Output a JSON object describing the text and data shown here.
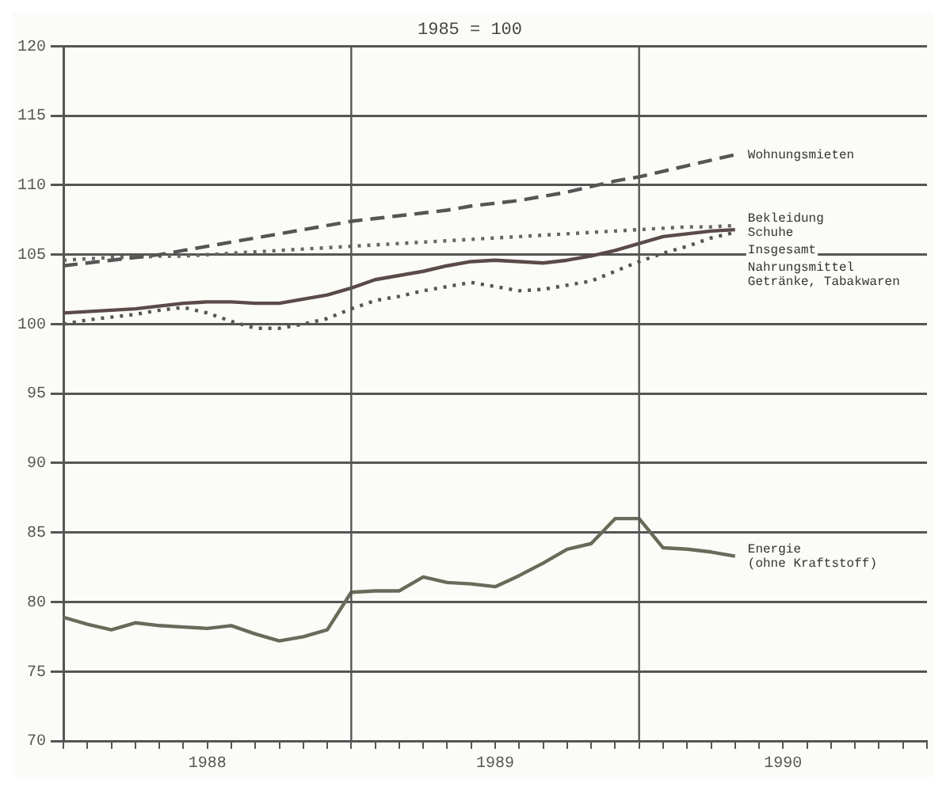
{
  "chart_data": {
    "type": "line",
    "title": "1985 = 100",
    "x": [
      "1988-01",
      "1988-02",
      "1988-03",
      "1988-04",
      "1988-05",
      "1988-06",
      "1988-07",
      "1988-08",
      "1988-09",
      "1988-10",
      "1988-11",
      "1988-12",
      "1989-01",
      "1989-02",
      "1989-03",
      "1989-04",
      "1989-05",
      "1989-06",
      "1989-07",
      "1989-08",
      "1989-09",
      "1989-10",
      "1989-11",
      "1989-12",
      "1990-01",
      "1990-02",
      "1990-03",
      "1990-04",
      "1990-05"
    ],
    "series": [
      {
        "name": "Wohnungsmieten",
        "color": "#555555",
        "line_style": "dashed",
        "values": [
          104.2,
          104.4,
          104.6,
          104.8,
          105.0,
          105.3,
          105.6,
          105.9,
          106.2,
          106.5,
          106.8,
          107.1,
          107.4,
          107.6,
          107.8,
          108.0,
          108.2,
          108.5,
          108.7,
          108.9,
          109.2,
          109.5,
          109.9,
          110.3,
          110.6,
          111.0,
          111.4,
          111.8,
          112.2
        ]
      },
      {
        "name": "Bekleidung Schuhe",
        "color": "#666666",
        "line_style": "dotted",
        "values": [
          104.6,
          104.7,
          104.8,
          104.8,
          104.9,
          104.9,
          105.0,
          105.1,
          105.2,
          105.3,
          105.4,
          105.5,
          105.6,
          105.7,
          105.8,
          105.9,
          106.0,
          106.1,
          106.2,
          106.3,
          106.4,
          106.5,
          106.6,
          106.7,
          106.8,
          106.9,
          107.0,
          107.0,
          107.1
        ]
      },
      {
        "name": "Insgesamt",
        "color": "#5a4a48",
        "line_style": "solid",
        "values": [
          100.8,
          100.9,
          101.0,
          101.1,
          101.3,
          101.5,
          101.6,
          101.6,
          101.5,
          101.5,
          101.8,
          102.1,
          102.6,
          103.2,
          103.5,
          103.8,
          104.2,
          104.5,
          104.6,
          104.5,
          104.4,
          104.6,
          104.9,
          105.3,
          105.8,
          106.3,
          106.5,
          106.7,
          106.8
        ]
      },
      {
        "name": "Nahrungsmittel Getränke, Tabakwaren",
        "color": "#555555",
        "line_style": "dotted",
        "values": [
          100.0,
          100.3,
          100.5,
          100.7,
          101.0,
          101.2,
          100.8,
          100.2,
          99.7,
          99.7,
          100.0,
          100.4,
          101.1,
          101.7,
          102.0,
          102.4,
          102.7,
          103.0,
          102.7,
          102.4,
          102.5,
          102.8,
          103.1,
          103.8,
          104.5,
          105.1,
          105.6,
          106.2,
          106.6
        ]
      },
      {
        "name": "Energie (ohne Kraftstoff)",
        "color": "#6a6a5a",
        "line_style": "solid",
        "values": [
          78.9,
          78.4,
          78.0,
          78.5,
          78.3,
          78.2,
          78.1,
          78.3,
          77.7,
          77.2,
          77.5,
          78.0,
          80.7,
          80.8,
          80.8,
          81.8,
          81.4,
          81.3,
          81.1,
          81.9,
          82.8,
          83.8,
          84.2,
          86.0,
          86.0,
          83.9,
          83.8,
          83.6,
          83.3
        ]
      }
    ],
    "xlim": [
      "1988-01",
      "1991-01"
    ],
    "xticks": [
      {
        "value": "1988-01",
        "label": null
      },
      {
        "value": "1988-02",
        "label": null
      },
      {
        "value": "1988-03",
        "label": null
      },
      {
        "value": "1988-04",
        "label": null
      },
      {
        "value": "1988-05",
        "label": null
      },
      {
        "value": "1988-06",
        "label": null
      },
      {
        "value": "1988-07",
        "label": "1988"
      },
      {
        "value": "1988-08",
        "label": null
      },
      {
        "value": "1988-09",
        "label": null
      },
      {
        "value": "1988-10",
        "label": null
      },
      {
        "value": "1988-11",
        "label": null
      },
      {
        "value": "1988-12",
        "label": null
      },
      {
        "value": "1989-01",
        "label": null
      },
      {
        "value": "1989-02",
        "label": null
      },
      {
        "value": "1989-03",
        "label": null
      },
      {
        "value": "1989-04",
        "label": null
      },
      {
        "value": "1989-05",
        "label": null
      },
      {
        "value": "1989-06",
        "label": null
      },
      {
        "value": "1989-07",
        "label": "1989"
      },
      {
        "value": "1989-08",
        "label": null
      },
      {
        "value": "1989-09",
        "label": null
      },
      {
        "value": "1989-10",
        "label": null
      },
      {
        "value": "1989-11",
        "label": null
      },
      {
        "value": "1989-12",
        "label": null
      },
      {
        "value": "1990-01",
        "label": null
      },
      {
        "value": "1990-02",
        "label": null
      },
      {
        "value": "1990-03",
        "label": null
      },
      {
        "value": "1990-04",
        "label": null
      },
      {
        "value": "1990-05",
        "label": null
      },
      {
        "value": "1990-06",
        "label": null
      },
      {
        "value": "1990-07",
        "label": "1990"
      },
      {
        "value": "1990-08",
        "label": null
      },
      {
        "value": "1990-09",
        "label": null
      },
      {
        "value": "1990-10",
        "label": null
      },
      {
        "value": "1990-11",
        "label": null
      },
      {
        "value": "1990-12",
        "label": null
      },
      {
        "value": "1991-01",
        "label": null
      }
    ],
    "ylim": [
      70,
      120
    ],
    "yticks": [
      70,
      75,
      80,
      85,
      90,
      95,
      100,
      105,
      110,
      115,
      120
    ],
    "grid": "y",
    "legend": false,
    "marker": "none",
    "ref_lines": [
      {
        "axis": "x",
        "value": "1989-01",
        "color": "#555555"
      },
      {
        "axis": "x",
        "value": "1990-01",
        "color": "#555555"
      }
    ]
  }
}
